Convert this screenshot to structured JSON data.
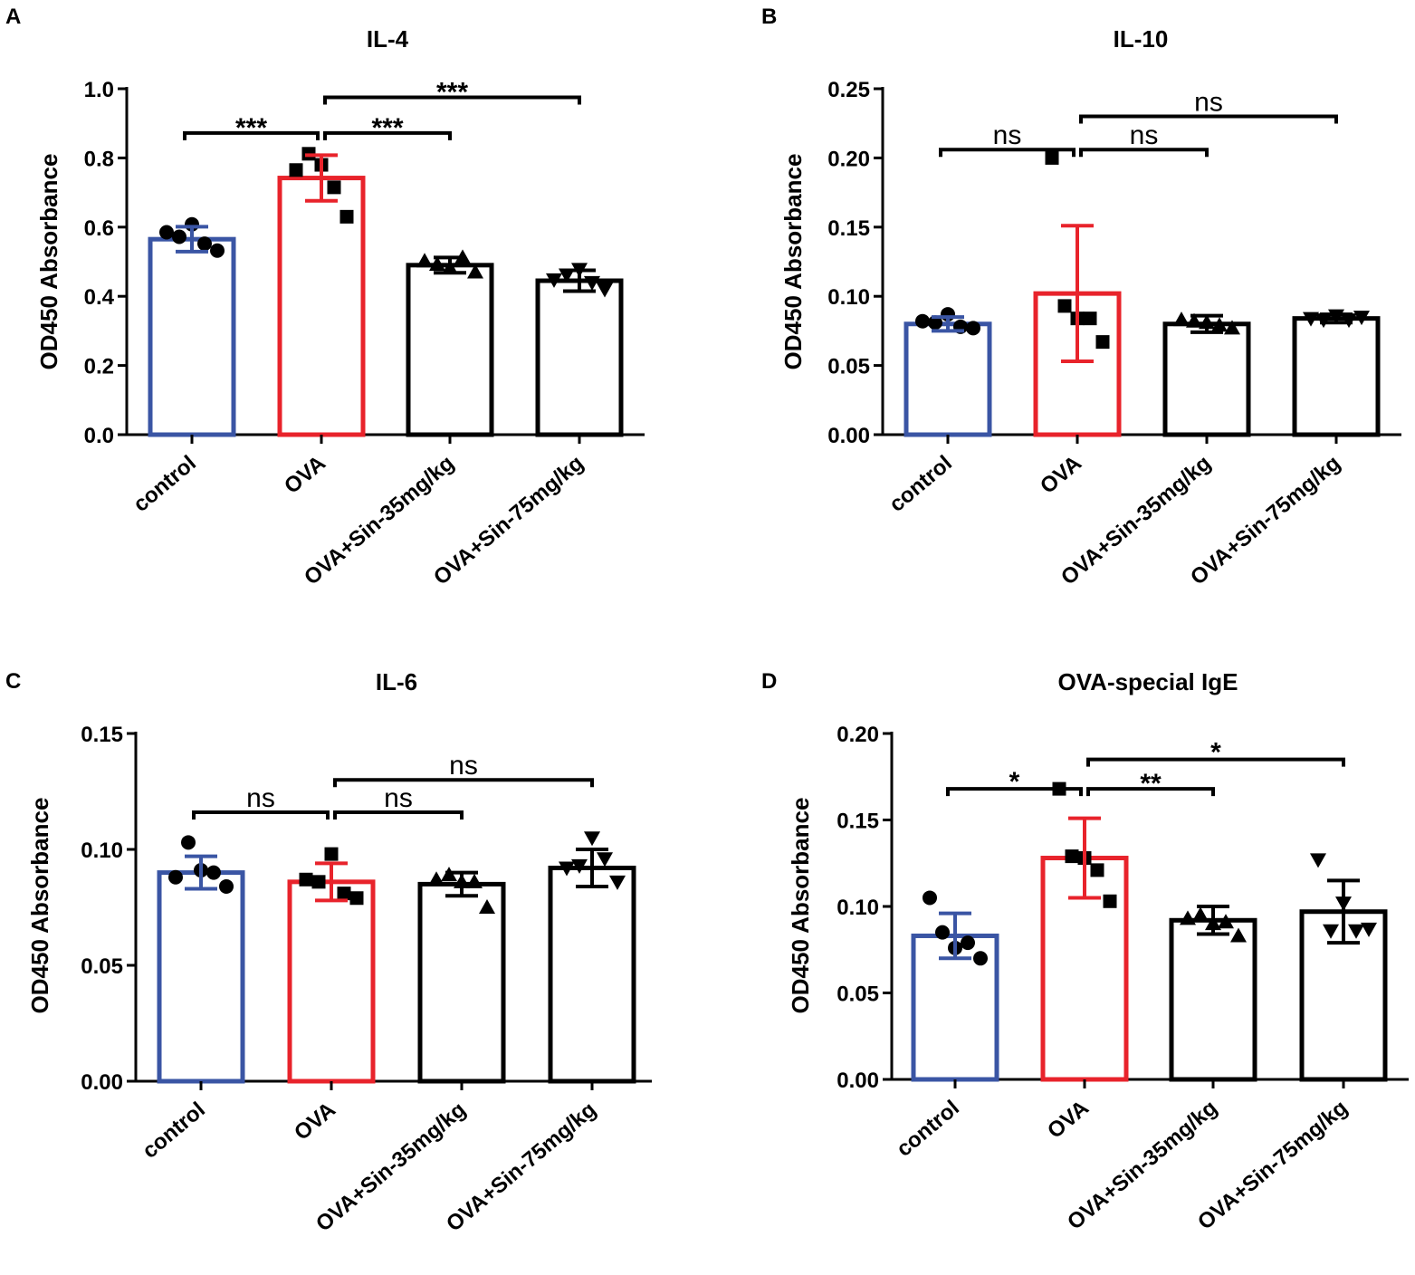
{
  "chart_data": [
    {
      "panel": "A",
      "type": "bar",
      "title": "IL-4",
      "ylabel": "OD450 Absorbance",
      "ylim": [
        0,
        1.0
      ],
      "yticks": [
        "0.0",
        "0.2",
        "0.4",
        "0.6",
        "0.8",
        "1.0"
      ],
      "categories": [
        "control",
        "OVA",
        "OVA+Sin-35mg/kg",
        "OVA+Sin-75mg/kg"
      ],
      "bar_colors": [
        "#3a55a4",
        "#e8232b",
        "#000000",
        "#000000"
      ],
      "markers": [
        "circle",
        "square",
        "triangle-up",
        "triangle-down"
      ],
      "values": [
        0.565,
        0.742,
        0.49,
        0.445
      ],
      "errors": [
        0.036,
        0.066,
        0.022,
        0.03
      ],
      "points": [
        [
          0.585,
          0.572,
          0.608,
          0.552,
          0.532
        ],
        [
          0.765,
          0.812,
          0.78,
          0.715,
          0.63
        ],
        [
          0.502,
          0.492,
          0.482,
          0.512,
          0.47
        ],
        [
          0.448,
          0.462,
          0.478,
          0.44,
          0.42
        ]
      ],
      "comparisons": [
        {
          "from": 0,
          "to": 1,
          "label": "***",
          "y": 0.872
        },
        {
          "from": 1,
          "to": 2,
          "label": "***",
          "y": 0.872
        },
        {
          "from": 1,
          "to": 3,
          "label": "***",
          "y": 0.975
        }
      ]
    },
    {
      "panel": "B",
      "type": "bar",
      "title": "IL-10",
      "ylabel": "OD450 Absorbance",
      "ylim": [
        0,
        0.25
      ],
      "yticks": [
        "0.00",
        "0.05",
        "0.10",
        "0.15",
        "0.20",
        "0.25"
      ],
      "categories": [
        "control",
        "OVA",
        "OVA+Sin-35mg/kg",
        "OVA+Sin-75mg/kg"
      ],
      "bar_colors": [
        "#3a55a4",
        "#e8232b",
        "#000000",
        "#000000"
      ],
      "markers": [
        "circle",
        "square",
        "triangle-up",
        "triangle-down"
      ],
      "values": [
        0.08,
        0.102,
        0.08,
        0.084
      ],
      "errors": [
        0.005,
        0.049,
        0.006,
        0.003
      ],
      "points": [
        [
          0.082,
          0.081,
          0.087,
          0.078,
          0.077
        ],
        [
          0.2,
          0.093,
          0.084,
          0.084,
          0.067
        ],
        [
          0.083,
          0.082,
          0.081,
          0.079,
          0.077
        ],
        [
          0.084,
          0.083,
          0.086,
          0.083,
          0.085
        ]
      ],
      "comparisons": [
        {
          "from": 0,
          "to": 1,
          "label": "ns",
          "y": 0.206
        },
        {
          "from": 1,
          "to": 2,
          "label": "ns",
          "y": 0.206
        },
        {
          "from": 1,
          "to": 3,
          "label": "ns",
          "y": 0.23
        }
      ]
    },
    {
      "panel": "C",
      "type": "bar",
      "title": "IL-6",
      "ylabel": "OD450 Absorbance",
      "ylim": [
        0,
        0.15
      ],
      "yticks": [
        "0.00",
        "0.05",
        "0.10",
        "0.15"
      ],
      "categories": [
        "control",
        "OVA",
        "OVA+Sin-35mg/kg",
        "OVA+Sin-75mg/kg"
      ],
      "bar_colors": [
        "#3a55a4",
        "#e8232b",
        "#000000",
        "#000000"
      ],
      "markers": [
        "circle",
        "square",
        "triangle-up",
        "triangle-down"
      ],
      "values": [
        0.09,
        0.086,
        0.085,
        0.092
      ],
      "errors": [
        0.007,
        0.008,
        0.005,
        0.008
      ],
      "points": [
        [
          0.088,
          0.103,
          0.091,
          0.09,
          0.084
        ],
        [
          0.087,
          0.086,
          0.098,
          0.081,
          0.079
        ],
        [
          0.087,
          0.089,
          0.086,
          0.086,
          0.075
        ],
        [
          0.092,
          0.093,
          0.105,
          0.096,
          0.086
        ]
      ],
      "comparisons": [
        {
          "from": 0,
          "to": 1,
          "label": "ns",
          "y": 0.116
        },
        {
          "from": 1,
          "to": 2,
          "label": "ns",
          "y": 0.116
        },
        {
          "from": 1,
          "to": 3,
          "label": "ns",
          "y": 0.13
        }
      ]
    },
    {
      "panel": "D",
      "type": "bar",
      "title": "OVA-special IgE",
      "ylabel": "OD450 Absorbance",
      "ylim": [
        0,
        0.2
      ],
      "yticks": [
        "0.00",
        "0.05",
        "0.10",
        "0.15",
        "0.20"
      ],
      "categories": [
        "control",
        "OVA",
        "OVA+Sin-35mg/kg",
        "OVA+Sin-75mg/kg"
      ],
      "bar_colors": [
        "#3a55a4",
        "#e8232b",
        "#000000",
        "#000000"
      ],
      "markers": [
        "circle",
        "square",
        "triangle-up",
        "triangle-down"
      ],
      "values": [
        0.083,
        0.128,
        0.092,
        0.097
      ],
      "errors": [
        0.013,
        0.023,
        0.008,
        0.018
      ],
      "points": [
        [
          0.105,
          0.085,
          0.076,
          0.079,
          0.07
        ],
        [
          0.168,
          0.129,
          0.128,
          0.121,
          0.103
        ],
        [
          0.093,
          0.095,
          0.09,
          0.091,
          0.083
        ],
        [
          0.127,
          0.086,
          0.102,
          0.086,
          0.087
        ]
      ],
      "comparisons": [
        {
          "from": 0,
          "to": 1,
          "label": "*",
          "y": 0.168
        },
        {
          "from": 1,
          "to": 2,
          "label": "**",
          "y": 0.168
        },
        {
          "from": 1,
          "to": 3,
          "label": "*",
          "y": 0.185
        }
      ]
    }
  ]
}
